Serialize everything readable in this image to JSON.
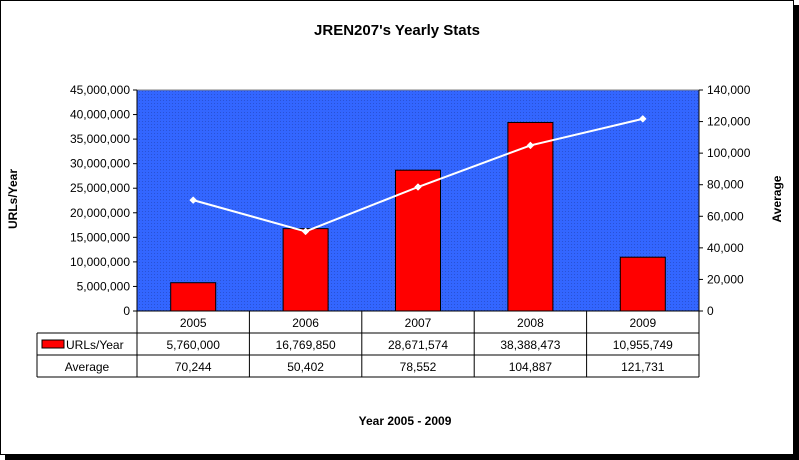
{
  "chart_data": {
    "type": "bar",
    "title": "JREN207's Yearly Stats",
    "xlabel": "Year 2005 - 2009",
    "ylabel": "URLs/Year",
    "y2label": "Average",
    "categories": [
      "2005",
      "2006",
      "2007",
      "2008",
      "2009"
    ],
    "ylim": [
      0,
      45000000
    ],
    "y2lim": [
      0,
      140000
    ],
    "yticks": [
      "0",
      "5,000,000",
      "10,000,000",
      "15,000,000",
      "20,000,000",
      "25,000,000",
      "30,000,000",
      "35,000,000",
      "40,000,000",
      "45,000,000"
    ],
    "y2ticks": [
      "0",
      "20,000",
      "40,000",
      "60,000",
      "80,000",
      "100,000",
      "120,000",
      "140,000"
    ],
    "series": [
      {
        "name": "URLs/Year",
        "type": "bar",
        "axis": "left",
        "values": [
          5760000,
          16769850,
          28671574,
          38388473,
          10955749
        ],
        "labels": [
          "5,760,000",
          "16,769,850",
          "28,671,574",
          "38,388,473",
          "10,955,749"
        ],
        "color": "#ff0000"
      },
      {
        "name": "Average",
        "type": "line",
        "axis": "right",
        "values": [
          70244,
          50402,
          78552,
          104887,
          121731
        ],
        "labels": [
          "70,244",
          "50,402",
          "78,552",
          "104,887",
          "121,731"
        ],
        "color": "#ffffff"
      }
    ],
    "plot_background": "#3366ff",
    "legend": "data-table"
  }
}
